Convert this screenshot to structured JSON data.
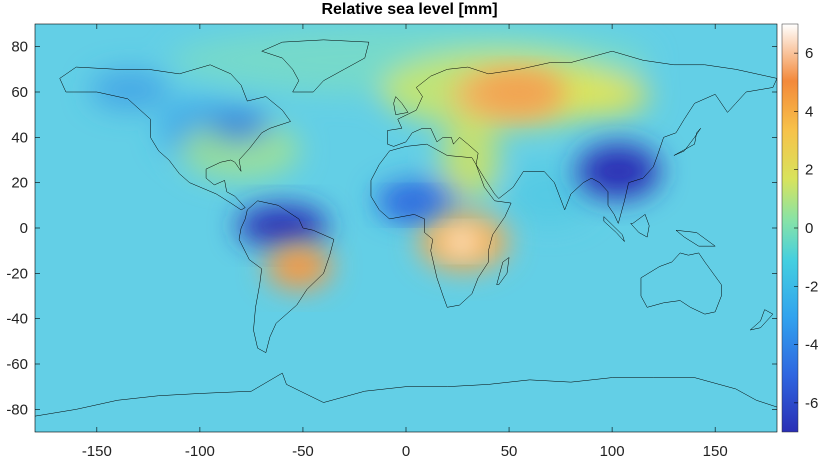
{
  "map": {
    "title": "Relative sea level [mm]",
    "projection": "equirectangular",
    "lon_range": [
      -180,
      180
    ],
    "lat_range": [
      -90,
      90
    ],
    "x_ticks": [
      -150,
      -100,
      -50,
      0,
      50,
      100,
      150
    ],
    "y_ticks": [
      80,
      60,
      40,
      20,
      0,
      -20,
      -40,
      -60,
      -80
    ],
    "colorbar": {
      "range": [
        -7,
        7
      ],
      "ticks": [
        6,
        4,
        2,
        0,
        -2,
        -4,
        -6
      ],
      "colormap": "parula-like",
      "colors": [
        "#2b2fbf",
        "#2f7fe8",
        "#3ec1ef",
        "#6ee3c7",
        "#c9e86a",
        "#f6c94f",
        "#f38a3a",
        "#ffffff"
      ]
    },
    "background_color": "#63cfe6",
    "features": [
      {
        "name": "amazon-low",
        "lon": -60,
        "lat": 0,
        "value": -6.5
      },
      {
        "name": "south-brazil-high",
        "lon": -52,
        "lat": -17,
        "value": 4
      },
      {
        "name": "central-africa-high",
        "lon": 27,
        "lat": -6,
        "value": 6.8
      },
      {
        "name": "southeast-asia-low",
        "lon": 105,
        "lat": 25,
        "value": -6.5
      },
      {
        "name": "siberia-high",
        "lon": 55,
        "lat": 60,
        "value": 3
      },
      {
        "name": "west-africa-low",
        "lon": 5,
        "lat": 10,
        "value": -4
      }
    ]
  }
}
